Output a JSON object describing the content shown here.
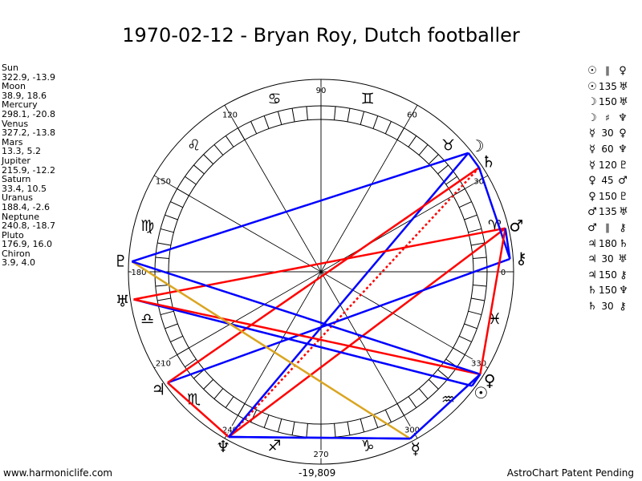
{
  "title": "1970-02-12 - Bryan Roy, Dutch footballer",
  "planets": [
    {
      "name": "Sun",
      "coords": "322.9, -13.9",
      "glyph": "☉"
    },
    {
      "name": "Moon",
      "coords": "38.9, 18.6",
      "glyph": "☽"
    },
    {
      "name": "Mercury",
      "coords": "298.1, -20.8",
      "glyph": "☿"
    },
    {
      "name": "Venus",
      "coords": "327.2, -13.8",
      "glyph": "♀"
    },
    {
      "name": "Mars",
      "coords": "13.3, 5.2",
      "glyph": "♂"
    },
    {
      "name": "Jupiter",
      "coords": "215.9, -12.2",
      "glyph": "♃"
    },
    {
      "name": "Saturn",
      "coords": "33.4, 10.5",
      "glyph": "♄"
    },
    {
      "name": "Uranus",
      "coords": "188.4, -2.6",
      "glyph": "♅"
    },
    {
      "name": "Neptune",
      "coords": "240.8, -18.7",
      "glyph": "♆"
    },
    {
      "name": "Pluto",
      "coords": "176.9, 16.0",
      "glyph": "♇"
    },
    {
      "name": "Chiron",
      "coords": "3.9, 4.0",
      "glyph": "⚷"
    }
  ],
  "aspects": [
    {
      "p1": "☉",
      "aspect": "∥",
      "p2": "♀"
    },
    {
      "p1": "☉",
      "aspect": "135",
      "p2": "♅"
    },
    {
      "p1": "☽",
      "aspect": "150",
      "p2": "♅"
    },
    {
      "p1": "☽",
      "aspect": "♯",
      "p2": "♆"
    },
    {
      "p1": "☿",
      "aspect": "30",
      "p2": "♀"
    },
    {
      "p1": "☿",
      "aspect": "60",
      "p2": "♆"
    },
    {
      "p1": "☿",
      "aspect": "120",
      "p2": "♇"
    },
    {
      "p1": "♀",
      "aspect": "45",
      "p2": "♂"
    },
    {
      "p1": "♀",
      "aspect": "150",
      "p2": "♇"
    },
    {
      "p1": "♂",
      "aspect": "135",
      "p2": "♅"
    },
    {
      "p1": "♂",
      "aspect": "∥",
      "p2": "⚷"
    },
    {
      "p1": "♃",
      "aspect": "180",
      "p2": "♄"
    },
    {
      "p1": "♃",
      "aspect": "30",
      "p2": "♅"
    },
    {
      "p1": "♃",
      "aspect": "150",
      "p2": "⚷"
    },
    {
      "p1": "♄",
      "aspect": "150",
      "p2": "♆"
    },
    {
      "p1": "♄",
      "aspect": "30",
      "p2": "⚷"
    }
  ],
  "degree_labels": [
    "0",
    "30",
    "60",
    "90",
    "120",
    "150",
    "180",
    "210",
    "240",
    "270",
    "300",
    "330"
  ],
  "zodiac_signs": [
    "♈",
    "♉",
    "♊",
    "♋",
    "♌",
    "♍",
    "♎",
    "♏",
    "♐",
    "♑",
    "♒",
    "♓"
  ],
  "lines": [
    {
      "from": "Neptune",
      "to": "Jupiter",
      "color": "#ff0000",
      "style": "solid"
    },
    {
      "from": "Neptune",
      "to": "Mars",
      "color": "#ff0000",
      "style": "solid"
    },
    {
      "from": "Neptune",
      "to": "Saturn",
      "color": "#ff0000",
      "style": "dotted"
    },
    {
      "from": "Neptune",
      "to": "Moon",
      "color": "#0000ff",
      "style": "solid"
    },
    {
      "from": "Neptune",
      "to": "Mercury",
      "color": "#0000ff",
      "style": "solid"
    },
    {
      "from": "Jupiter",
      "to": "Chiron",
      "color": "#0000ff",
      "style": "solid"
    },
    {
      "from": "Jupiter",
      "to": "Saturn",
      "color": "#ff0000",
      "style": "solid"
    },
    {
      "from": "Uranus",
      "to": "Sun",
      "color": "#0000ff",
      "style": "solid"
    },
    {
      "from": "Uranus",
      "to": "Venus",
      "color": "#ff0000",
      "style": "solid"
    },
    {
      "from": "Uranus",
      "to": "Mars",
      "color": "#ff0000",
      "style": "solid"
    },
    {
      "from": "Pluto",
      "to": "Moon",
      "color": "#0000ff",
      "style": "solid"
    },
    {
      "from": "Pluto",
      "to": "Mercury",
      "color": "#daa520",
      "style": "solid"
    },
    {
      "from": "Pluto",
      "to": "Venus",
      "color": "#0000ff",
      "style": "solid"
    },
    {
      "from": "Saturn",
      "to": "Chiron",
      "color": "#0000ff",
      "style": "solid"
    },
    {
      "from": "Mercury",
      "to": "Venus",
      "color": "#0000ff",
      "style": "solid"
    },
    {
      "from": "Mercury",
      "to": "Neptune",
      "color": "#0000ff",
      "style": "solid"
    },
    {
      "from": "Venus",
      "to": "Mars",
      "color": "#ff0000",
      "style": "solid"
    },
    {
      "from": "Mars",
      "to": "Chiron",
      "color": "#0000ff",
      "style": "solid"
    },
    {
      "from": "Moon",
      "to": "Saturn",
      "color": "#0000ff",
      "style": "solid"
    },
    {
      "from": "Sun",
      "to": "Venus",
      "color": "#0000ff",
      "style": "solid"
    }
  ],
  "footer": {
    "left": "www.harmoniclife.com",
    "center": "-19,809",
    "right": "AstroChart Patent Pending"
  }
}
